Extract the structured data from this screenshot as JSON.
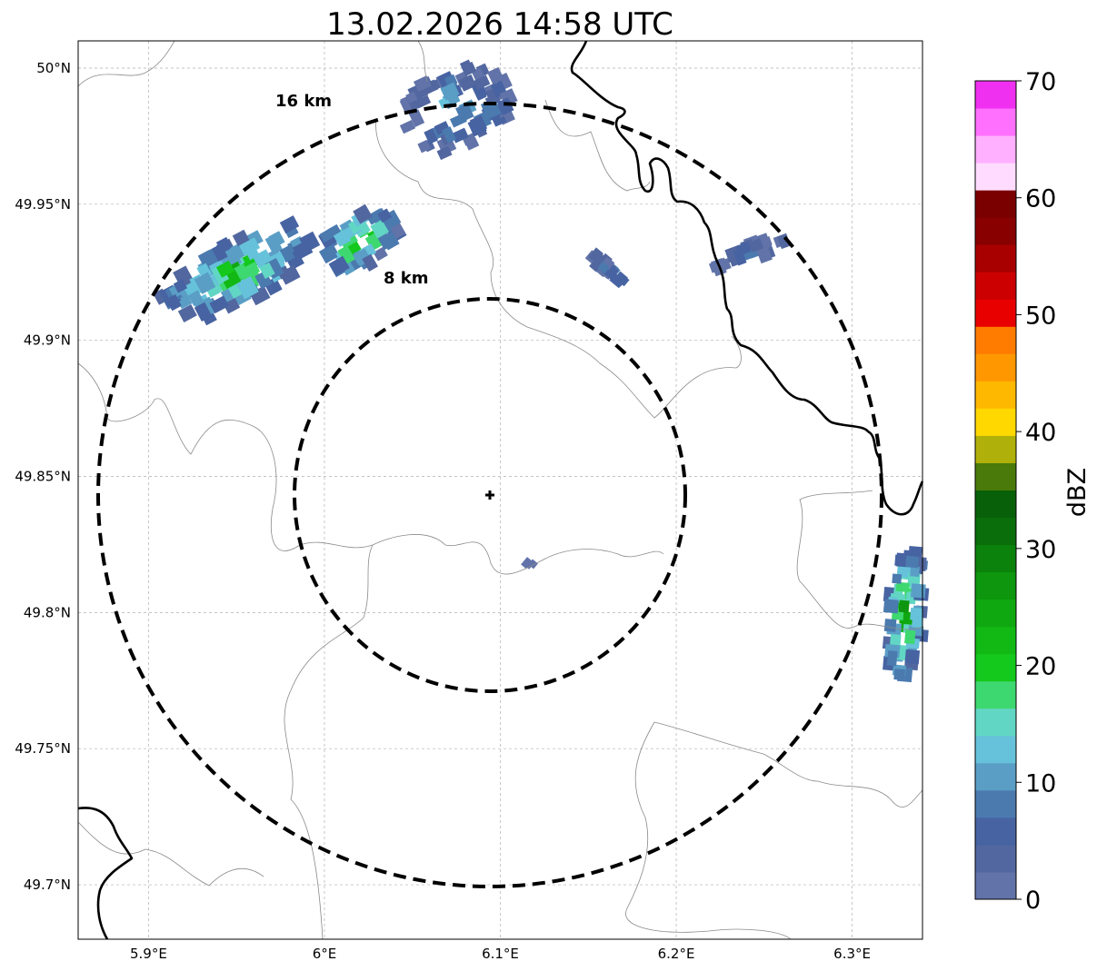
{
  "title": "13.02.2026 14:58 UTC",
  "map": {
    "lon_range": [
      5.86,
      6.34
    ],
    "lat_range": [
      49.68,
      50.01
    ],
    "x_ticks": [
      {
        "value": 5.9,
        "label": "5.9°E"
      },
      {
        "value": 6.0,
        "label": "6°E"
      },
      {
        "value": 6.1,
        "label": "6.1°E"
      },
      {
        "value": 6.2,
        "label": "6.2°E"
      },
      {
        "value": 6.3,
        "label": "6.3°E"
      }
    ],
    "y_ticks": [
      {
        "value": 50.0,
        "label": "50°N"
      },
      {
        "value": 49.95,
        "label": "49.95°N"
      },
      {
        "value": 49.9,
        "label": "49.9°N"
      },
      {
        "value": 49.85,
        "label": "49.85°N"
      },
      {
        "value": 49.8,
        "label": "49.8°N"
      },
      {
        "value": 49.75,
        "label": "49.75°N"
      },
      {
        "value": 49.7,
        "label": "49.7°N"
      }
    ],
    "radar_site": {
      "lon": 6.095,
      "lat": 49.843,
      "marker": "cross-marker"
    },
    "rings": [
      {
        "label": "8 km",
        "radius_km": 8
      },
      {
        "label": "16 km",
        "radius_km": 16
      }
    ]
  },
  "colorbar": {
    "label": "dBZ",
    "min": 0,
    "max": 70,
    "ticks": [
      "0",
      "10",
      "20",
      "30",
      "40",
      "50",
      "60",
      "70"
    ],
    "colors": [
      "#6173a8",
      "#52679f",
      "#4763a2",
      "#4b7aaf",
      "#5a9ec6",
      "#66c2da",
      "#62d6c4",
      "#3ed870",
      "#14c81c",
      "#12b814",
      "#10a810",
      "#0e960e",
      "#0b820b",
      "#0a6e0a",
      "#086008",
      "#4a7a0a",
      "#b0b00a",
      "#ffd800",
      "#ffb800",
      "#ff9800",
      "#ff7c00",
      "#e80000",
      "#cc0000",
      "#a80000",
      "#880000",
      "#7a0000",
      "#ffdcff",
      "#ffb0ff",
      "#ff70ff",
      "#f030f0"
    ]
  },
  "echoes": [
    {
      "name": "northwest-cell",
      "lon": 5.95,
      "lat": 49.925,
      "peak_dbz": 25
    },
    {
      "name": "north-central-cell",
      "lon": 6.02,
      "lat": 49.937,
      "peak_dbz": 28
    },
    {
      "name": "north-cell",
      "lon": 6.075,
      "lat": 49.985,
      "peak_dbz": 16
    },
    {
      "name": "northeast-small-cell",
      "lon": 6.163,
      "lat": 49.925,
      "peak_dbz": 12
    },
    {
      "name": "east-cell",
      "lon": 6.24,
      "lat": 49.932,
      "peak_dbz": 10
    },
    {
      "name": "southeast-edge-cell",
      "lon": 6.33,
      "lat": 49.8,
      "peak_dbz": 30
    },
    {
      "name": "center-speck",
      "lon": 6.118,
      "lat": 49.817,
      "peak_dbz": 5
    }
  ]
}
